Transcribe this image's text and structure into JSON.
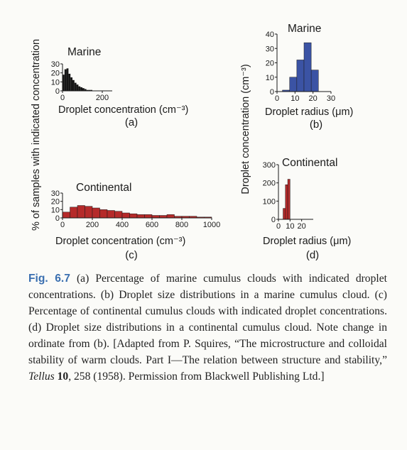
{
  "y_axis_label_left": "% of samples with indicated concentration",
  "y_axis_label_right": "Droplet concentration (cm⁻³)",
  "chart_data": [
    {
      "panel": "(a)",
      "type": "bar",
      "title": "Marine",
      "xlabel": "Droplet concentration (cm⁻³)",
      "ylabel": "",
      "x_ticks": [
        "0",
        "200"
      ],
      "y_ticks": [
        "30",
        "20",
        "10",
        "0"
      ],
      "xlim": [
        0,
        250
      ],
      "ylim": [
        0,
        30
      ],
      "bin_width": 10,
      "x": [
        0,
        10,
        20,
        30,
        40,
        50,
        60,
        70,
        80,
        90,
        100,
        110,
        120,
        130,
        140
      ],
      "values": [
        18,
        24,
        25,
        19,
        15,
        12,
        9,
        7,
        5,
        4,
        3,
        2,
        1,
        1,
        1
      ],
      "color": "#161616"
    },
    {
      "panel": "(b)",
      "type": "bar",
      "title": "Marine",
      "xlabel": "Droplet radius (μm)",
      "ylabel": "",
      "x_ticks": [
        "0",
        "10",
        "20",
        "30"
      ],
      "y_ticks": [
        "40",
        "30",
        "20",
        "10",
        "0"
      ],
      "xlim": [
        0,
        30
      ],
      "ylim": [
        0,
        40
      ],
      "bin_width": 4,
      "x": [
        3,
        7,
        11,
        15,
        19
      ],
      "values": [
        1,
        10,
        22,
        34,
        15
      ],
      "color": "#3b53a4"
    },
    {
      "panel": "(c)",
      "type": "bar",
      "title": "Continental",
      "xlabel": "Droplet concentration (cm⁻³)",
      "ylabel": "",
      "x_ticks": [
        "0",
        "200",
        "400",
        "600",
        "800",
        "1000"
      ],
      "y_ticks": [
        "30",
        "20",
        "10",
        "0"
      ],
      "xlim": [
        0,
        1000
      ],
      "ylim": [
        0,
        30
      ],
      "bin_width": 50,
      "x": [
        0,
        50,
        100,
        150,
        200,
        250,
        300,
        350,
        400,
        450,
        500,
        550,
        600,
        650,
        700,
        750,
        800,
        850,
        900,
        950
      ],
      "values": [
        7,
        13,
        15,
        14,
        12,
        10,
        9,
        8,
        6,
        5,
        4,
        4,
        3,
        3,
        4,
        2,
        2,
        2,
        1,
        1
      ],
      "color": "#b52a2a"
    },
    {
      "panel": "(d)",
      "type": "bar",
      "title": "Continental",
      "xlabel": "Droplet radius (μm)",
      "ylabel": "",
      "x_ticks": [
        "0",
        "10",
        "20"
      ],
      "y_ticks": [
        "300",
        "200",
        "100",
        "0"
      ],
      "xlim": [
        0,
        30
      ],
      "ylim": [
        0,
        300
      ],
      "bin_width": 2,
      "x": [
        2,
        4,
        6,
        8
      ],
      "values": [
        0,
        60,
        190,
        220
      ],
      "color": "#b52a2a"
    }
  ],
  "caption": {
    "fig_label": "Fig. 6.7",
    "text": "(a) Percentage of marine cumulus clouds with indicated droplet concentrations. (b) Droplet size distributions in a marine cumulus cloud. (c) Percentage of continental cumulus clouds with indicated droplet concentrations. (d) Droplet size distributions in a continental cumulus cloud. Note change in ordinate from (b). [Adapted from P. Squires, “The microstructure and colloidal stability of warm clouds. Part I—The relation between structure and stability,”",
    "journal": "Tellus",
    "volume": "10",
    "text_end": ", 258 (1958). Permission from Blackwell Publishing Ltd.]"
  }
}
